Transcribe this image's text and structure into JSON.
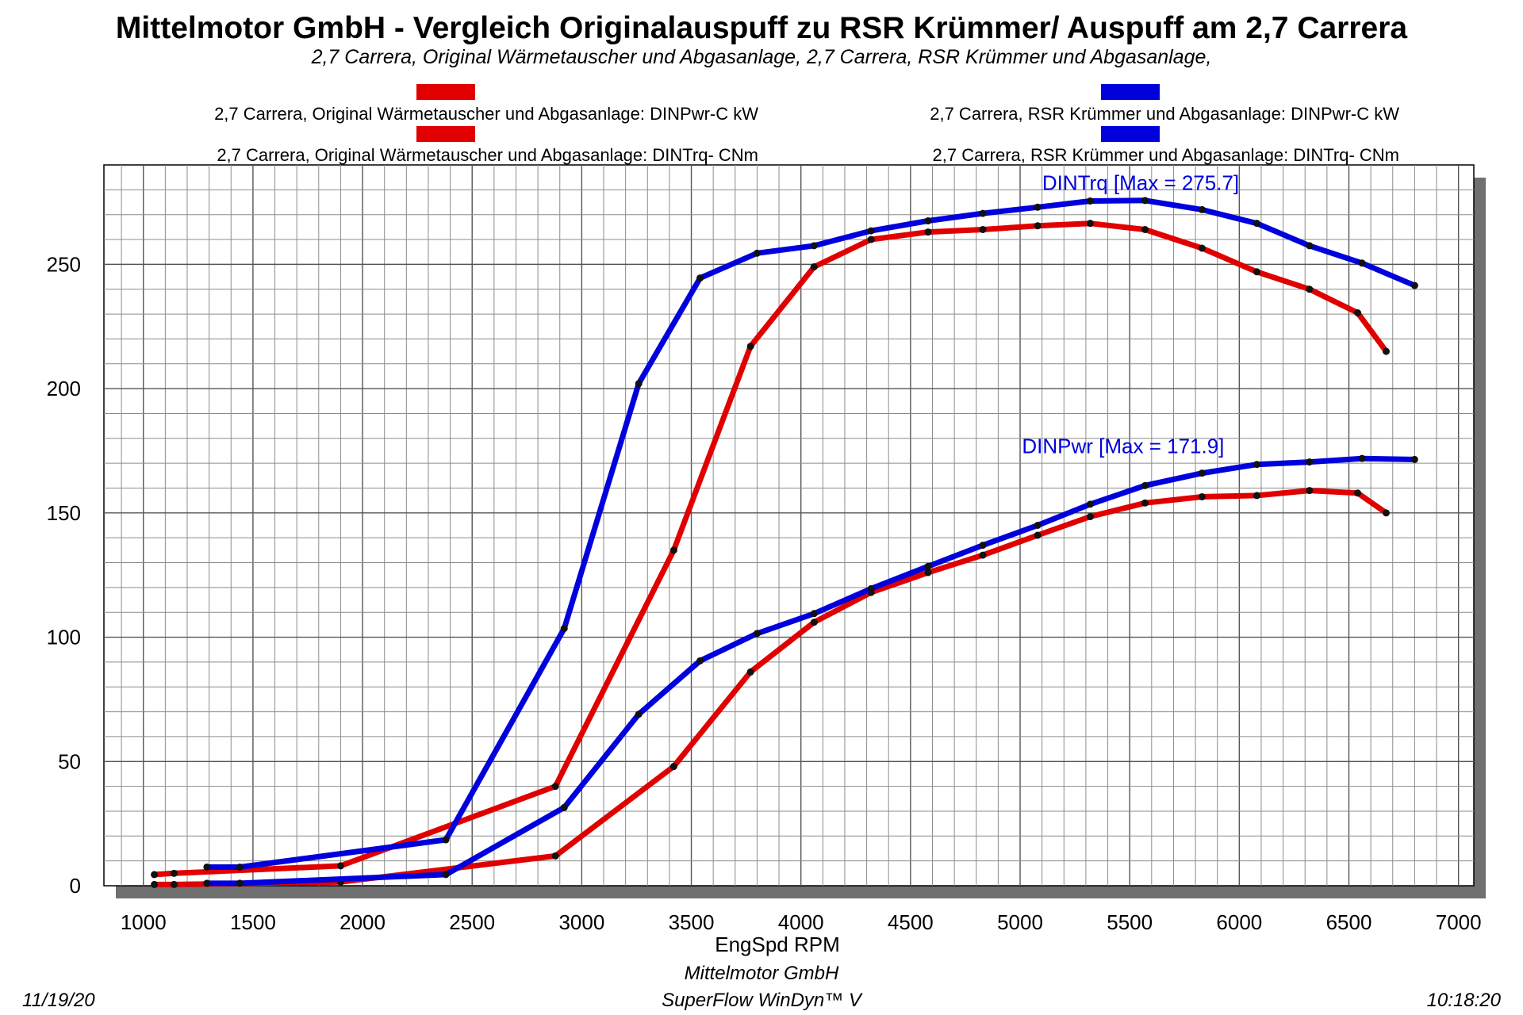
{
  "title": "Mittelmotor GmbH - Vergleich Originalauspuff zu RSR Krümmer/ Auspuff am 2,7 Carrera",
  "subtitle": "2,7 Carrera, Original Wärmetauscher und Abgasanlage, 2,7 Carrera, RSR Krümmer und Abgasanlage,",
  "legend": [
    {
      "label": "2,7 Carrera, Original Wärmetauscher und Abgasanlage: DINPwr-C kW",
      "color": "#e00000"
    },
    {
      "label": "2,7 Carrera, RSR Krümmer und Abgasanlage: DINPwr-C kW",
      "color": "#0000dd"
    },
    {
      "label": "2,7 Carrera, Original Wärmetauscher und Abgasanlage: DINTrq- CNm",
      "color": "#e00000"
    },
    {
      "label": "2,7 Carrera, RSR Krümmer und Abgasanlage: DINTrq- CNm",
      "color": "#0000dd"
    }
  ],
  "footer": {
    "date": "11/19/20",
    "company": "Mittelmotor GmbH",
    "software": "SuperFlow WinDyn™ V",
    "time": "10:18:20"
  },
  "chart_data": {
    "type": "line",
    "xlabel": "EngSpd  RPM",
    "ylabel": "",
    "xlim": [
      820,
      7070
    ],
    "ylim": [
      0,
      290
    ],
    "x_ticks": [
      1000,
      1500,
      2000,
      2500,
      3000,
      3500,
      4000,
      4500,
      5000,
      5500,
      6000,
      6500,
      7000
    ],
    "y_ticks": [
      0,
      50,
      100,
      150,
      200,
      250
    ],
    "grid": true,
    "annotations": [
      {
        "text": "DINTrq [Max = 275.7]",
        "x": 5550,
        "y": 280,
        "color": "#0000dd"
      },
      {
        "text": "DINPwr [Max = 171.9]",
        "x": 5470,
        "y": 174,
        "color": "#0000dd"
      }
    ],
    "series": [
      {
        "name": "2,7 Carrera, Original Wärmetauscher und Abgasanlage: DINTrq- CNm",
        "color": "#e00000",
        "points": [
          [
            1050,
            4.5
          ],
          [
            1140,
            5
          ],
          [
            1900,
            8
          ],
          [
            2880,
            40
          ],
          [
            3420,
            135
          ],
          [
            3770,
            217
          ],
          [
            4060,
            249
          ],
          [
            4320,
            260
          ],
          [
            4580,
            263
          ],
          [
            4830,
            264
          ],
          [
            5080,
            265.5
          ],
          [
            5320,
            266.5
          ],
          [
            5570,
            264
          ],
          [
            5830,
            256.5
          ],
          [
            6080,
            247
          ],
          [
            6320,
            240
          ],
          [
            6540,
            230.5
          ],
          [
            6670,
            215
          ]
        ]
      },
      {
        "name": "2,7 Carrera, RSR Krümmer und Abgasanlage: DINTrq- CNm",
        "color": "#0000dd",
        "points": [
          [
            1290,
            7.5
          ],
          [
            1440,
            7.5
          ],
          [
            2380,
            18.5
          ],
          [
            2920,
            103.5
          ],
          [
            3260,
            202
          ],
          [
            3540,
            244.5
          ],
          [
            3800,
            254.5
          ],
          [
            4060,
            257.5
          ],
          [
            4320,
            263.5
          ],
          [
            4580,
            267.5
          ],
          [
            4830,
            270.5
          ],
          [
            5080,
            273
          ],
          [
            5320,
            275.5
          ],
          [
            5570,
            275.7
          ],
          [
            5830,
            272
          ],
          [
            6080,
            266.5
          ],
          [
            6320,
            257.5
          ],
          [
            6560,
            250.5
          ],
          [
            6800,
            241.5
          ]
        ]
      },
      {
        "name": "2,7 Carrera, Original Wärmetauscher und Abgasanlage: DINPwr-C kW",
        "color": "#e00000",
        "points": [
          [
            1050,
            0.5
          ],
          [
            1140,
            0.5
          ],
          [
            1900,
            1.5
          ],
          [
            2880,
            12
          ],
          [
            3420,
            48
          ],
          [
            3770,
            86
          ],
          [
            4060,
            106
          ],
          [
            4320,
            118
          ],
          [
            4580,
            126
          ],
          [
            4830,
            133
          ],
          [
            5080,
            141
          ],
          [
            5320,
            148.5
          ],
          [
            5570,
            154
          ],
          [
            5830,
            156.5
          ],
          [
            6080,
            157
          ],
          [
            6320,
            159
          ],
          [
            6540,
            158
          ],
          [
            6670,
            150
          ]
        ]
      },
      {
        "name": "2,7 Carrera, RSR Krümmer und Abgasanlage: DINPwr-C kW",
        "color": "#0000dd",
        "points": [
          [
            1290,
            1
          ],
          [
            1440,
            1
          ],
          [
            2380,
            4.5
          ],
          [
            2920,
            31.5
          ],
          [
            3260,
            69
          ],
          [
            3540,
            90.5
          ],
          [
            3800,
            101.5
          ],
          [
            4060,
            109.5
          ],
          [
            4320,
            119.5
          ],
          [
            4580,
            128.5
          ],
          [
            4830,
            137
          ],
          [
            5080,
            145
          ],
          [
            5320,
            153.5
          ],
          [
            5570,
            161
          ],
          [
            5830,
            166
          ],
          [
            6080,
            169.5
          ],
          [
            6320,
            170.5
          ],
          [
            6560,
            171.9
          ],
          [
            6800,
            171.5
          ]
        ]
      }
    ]
  }
}
